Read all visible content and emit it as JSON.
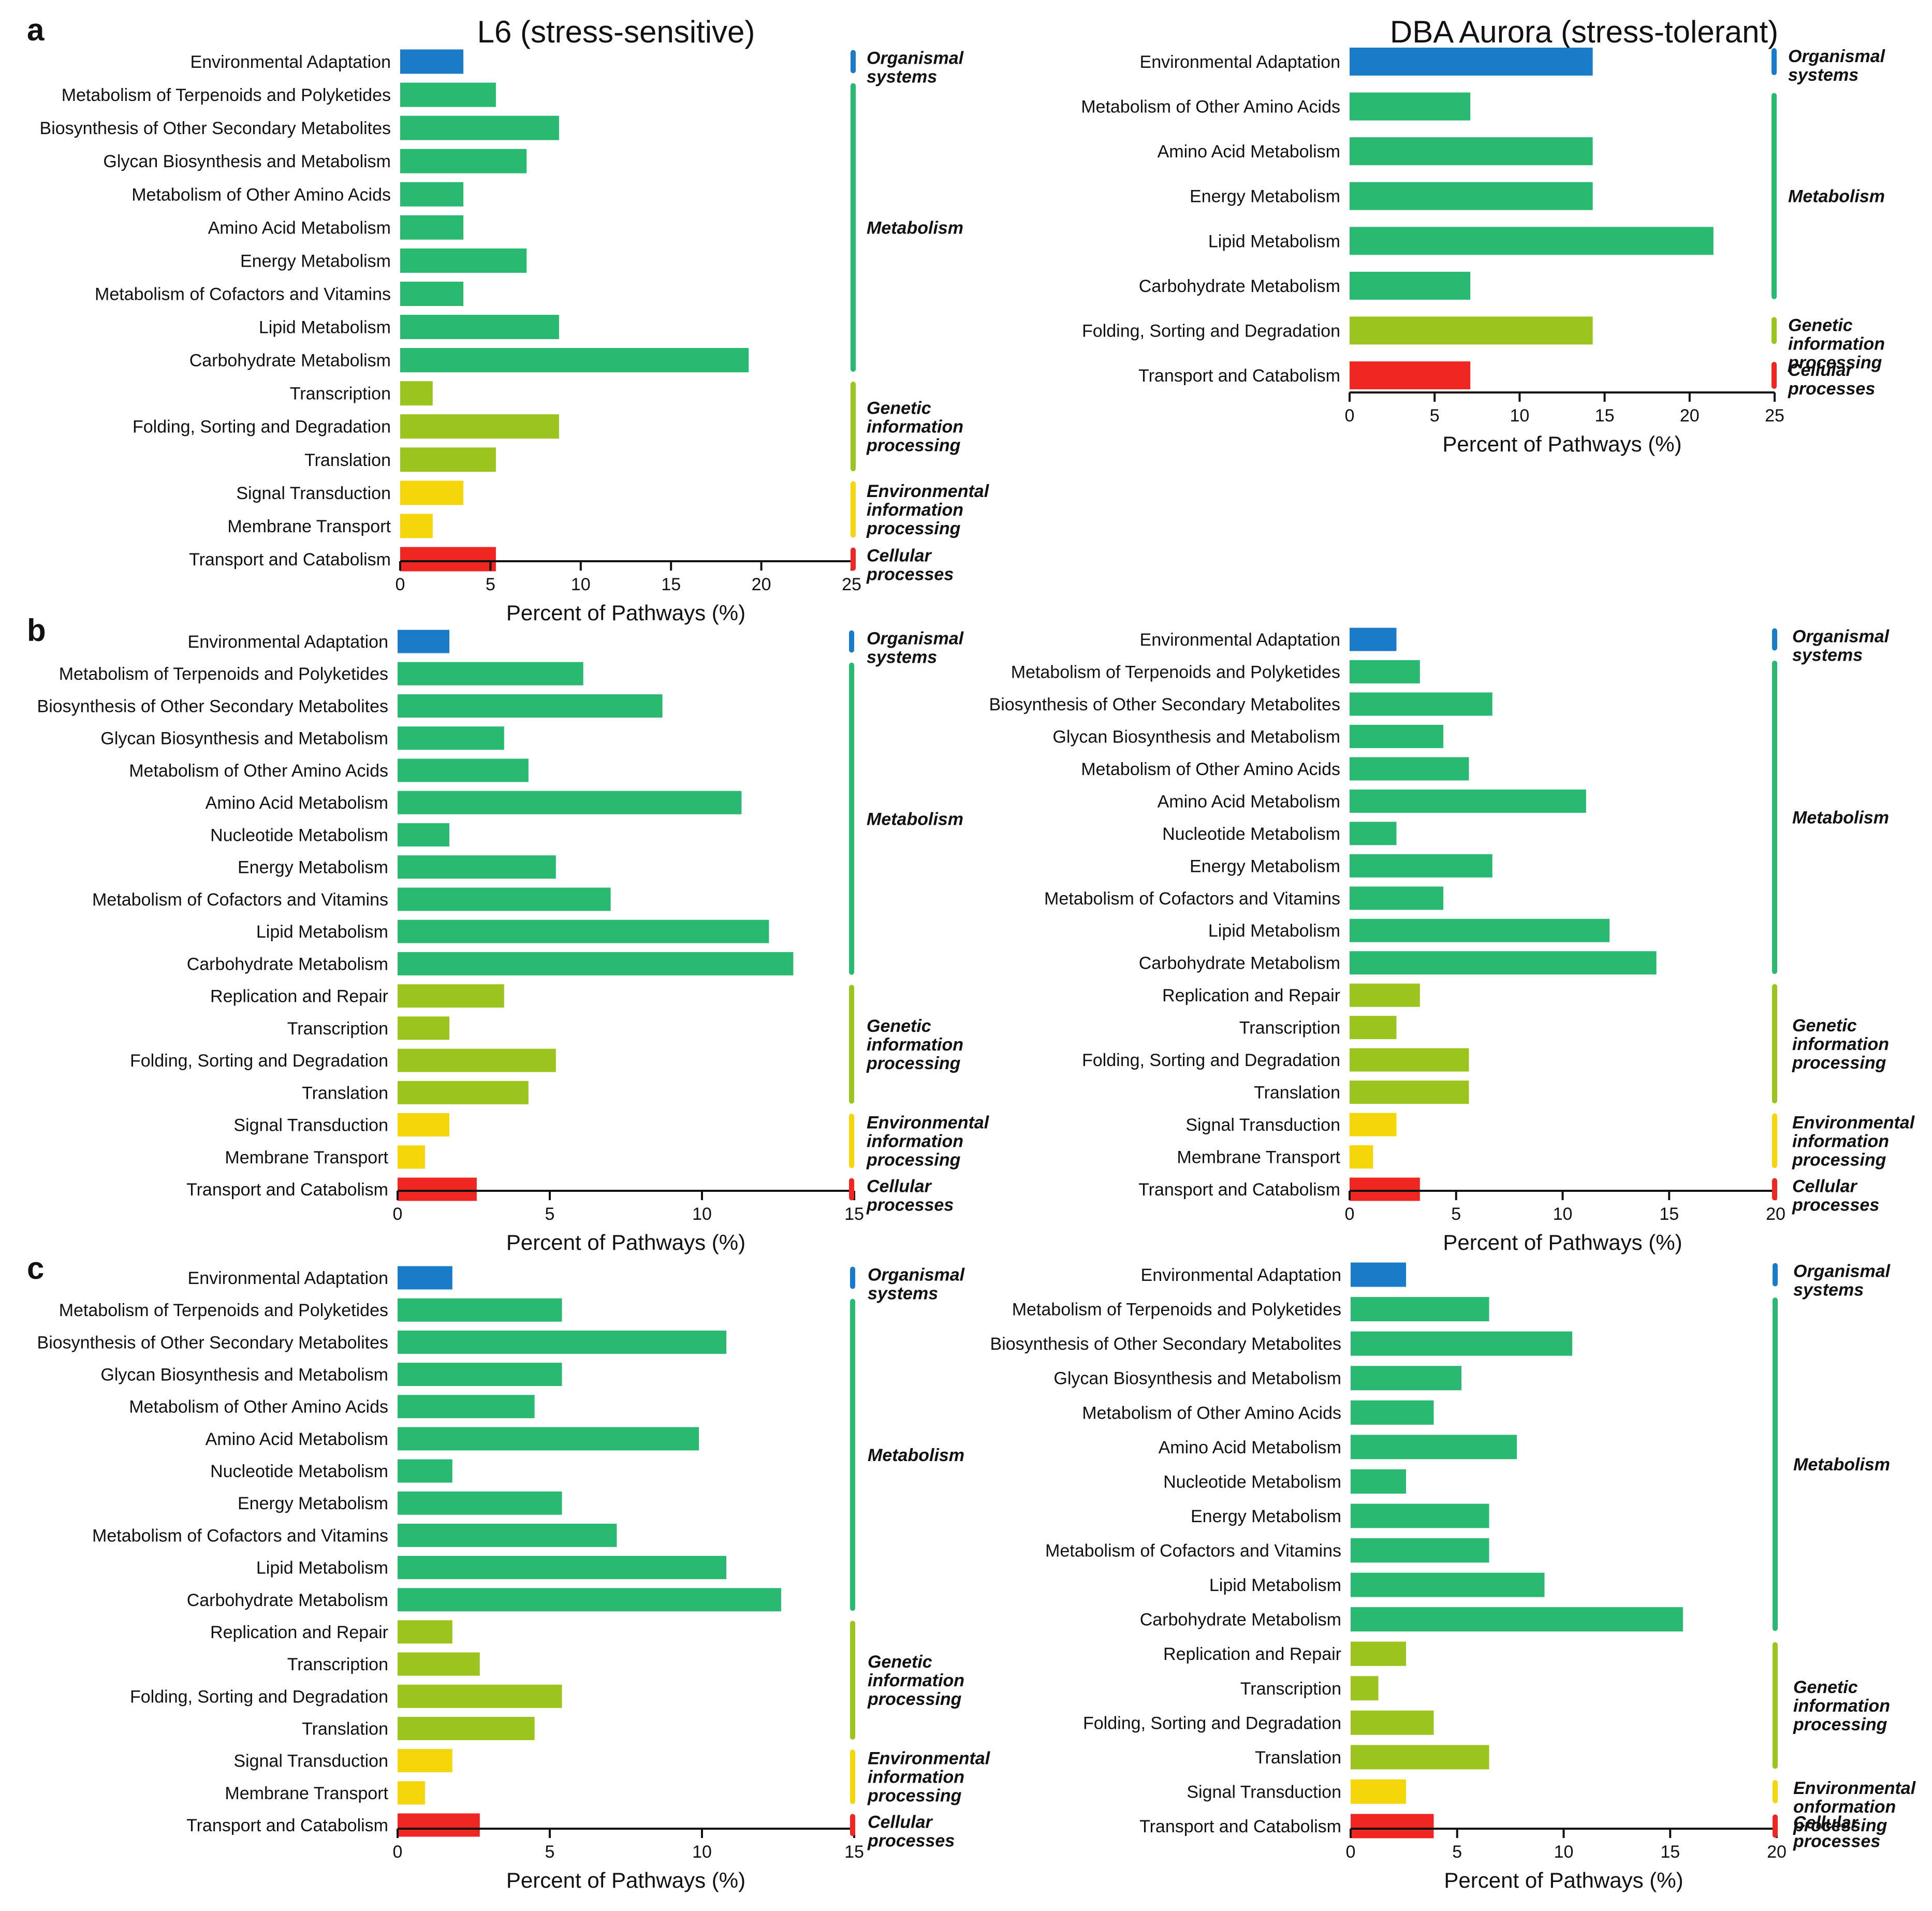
{
  "colors": {
    "Organismal systems": "#1a7bc9",
    "Metabolism": "#2ab970",
    "Genetic information processing": "#9bc41e",
    "Environmental information processing": "#f5d60a",
    "Cellular processes": "#ef2622",
    "axis": "#111111"
  },
  "chart_data": [
    {
      "type": "bar",
      "orientation": "horizontal",
      "panel": "a",
      "title": "L6 (stress-sensitive)",
      "xlabel": "Percent of Pathways (%)",
      "xlim": [
        0,
        25
      ],
      "xticks": [
        "0",
        "5",
        "10",
        "15",
        "20",
        "25"
      ],
      "categories": [
        "Environmental Adaptation",
        "Metabolism of Terpenoids and Polyketides",
        "Biosynthesis of Other Secondary Metabolites",
        "Glycan Biosynthesis and Metabolism",
        "Metabolism of Other Amino Acids",
        "Amino Acid Metabolism",
        "Energy Metabolism",
        "Metabolism of Cofactors and Vitamins",
        "Lipid Metabolism",
        "Carbohydrate Metabolism",
        "Transcription",
        "Folding, Sorting and Degradation",
        "Translation",
        "Signal Transduction",
        "Membrane Transport",
        "Transport and Catabolism"
      ],
      "values": [
        3.5,
        5.3,
        8.8,
        7.0,
        3.5,
        3.5,
        7.0,
        3.5,
        8.8,
        19.3,
        1.8,
        8.8,
        5.3,
        3.5,
        1.8,
        5.3
      ],
      "groups": [
        {
          "name": "Organismal systems",
          "lines": [
            "Organismal",
            "systems"
          ],
          "count": 1
        },
        {
          "name": "Metabolism",
          "lines": [
            "Metabolism"
          ],
          "count": 9
        },
        {
          "name": "Genetic information processing",
          "lines": [
            "Genetic",
            "information",
            "processing"
          ],
          "count": 3
        },
        {
          "name": "Environmental information processing",
          "lines": [
            "Environmental",
            "information",
            "processing"
          ],
          "count": 2
        },
        {
          "name": "Cellular processes",
          "lines": [
            "Cellular",
            "processes"
          ],
          "count": 1
        }
      ]
    },
    {
      "type": "bar",
      "orientation": "horizontal",
      "panel": "",
      "title": "DBA Aurora (stress-tolerant)",
      "xlabel": "Percent of Pathways (%)",
      "xlim": [
        0,
        25
      ],
      "xticks": [
        "0",
        "5",
        "10",
        "15",
        "20",
        "25"
      ],
      "categories": [
        "Environmental Adaptation",
        "Metabolism of Other Amino Acids",
        "Amino Acid Metabolism",
        "Energy Metabolism",
        "Lipid Metabolism",
        "Carbohydrate Metabolism",
        "Folding, Sorting and Degradation",
        "Transport and Catabolism"
      ],
      "values": [
        14.3,
        7.1,
        14.3,
        14.3,
        21.4,
        7.1,
        14.3,
        7.1
      ],
      "groups": [
        {
          "name": "Organismal systems",
          "lines": [
            "Organismal",
            "systems"
          ],
          "count": 1
        },
        {
          "name": "Metabolism",
          "lines": [
            "Metabolism"
          ],
          "count": 5
        },
        {
          "name": "Genetic information processing",
          "lines": [
            "Genetic",
            "information",
            "processing"
          ],
          "count": 1
        },
        {
          "name": "Cellular processes",
          "lines": [
            "Cellular",
            "processes"
          ],
          "count": 1
        }
      ]
    },
    {
      "type": "bar",
      "orientation": "horizontal",
      "panel": "b",
      "title": "",
      "xlabel": "Percent of Pathways (%)",
      "xlim": [
        0,
        15
      ],
      "xticks": [
        "0",
        "5",
        "10",
        "15"
      ],
      "categories": [
        "Environmental Adaptation",
        "Metabolism of Terpenoids and Polyketides",
        "Biosynthesis of Other Secondary Metabolites",
        "Glycan Biosynthesis and Metabolism",
        "Metabolism of Other Amino Acids",
        "Amino Acid Metabolism",
        "Nucleotide Metabolism",
        "Energy Metabolism",
        "Metabolism of Cofactors and Vitamins",
        "Lipid Metabolism",
        "Carbohydrate Metabolism",
        "Replication and Repair",
        "Transcription",
        "Folding, Sorting and Degradation",
        "Translation",
        "Signal Transduction",
        "Membrane Transport",
        "Transport and Catabolism"
      ],
      "values": [
        1.7,
        6.1,
        8.7,
        3.5,
        4.3,
        11.3,
        1.7,
        5.2,
        7.0,
        12.2,
        13.0,
        3.5,
        1.7,
        5.2,
        4.3,
        1.7,
        0.9,
        2.6
      ],
      "groups": [
        {
          "name": "Organismal systems",
          "lines": [
            "Organismal",
            "systems"
          ],
          "count": 1
        },
        {
          "name": "Metabolism",
          "lines": [
            "Metabolism"
          ],
          "count": 10
        },
        {
          "name": "Genetic information processing",
          "lines": [
            "Genetic",
            "information",
            "processing"
          ],
          "count": 4
        },
        {
          "name": "Environmental information processing",
          "lines": [
            "Environmental",
            "information",
            "processing"
          ],
          "count": 2
        },
        {
          "name": "Cellular processes",
          "lines": [
            "Cellular",
            "processes"
          ],
          "count": 1
        }
      ]
    },
    {
      "type": "bar",
      "orientation": "horizontal",
      "panel": "",
      "title": "",
      "xlabel": "Percent of Pathways (%)",
      "xlim": [
        0,
        20
      ],
      "xticks": [
        "0",
        "5",
        "10",
        "15",
        "20"
      ],
      "categories": [
        "Environmental Adaptation",
        "Metabolism of Terpenoids and Polyketides",
        "Biosynthesis of Other Secondary Metabolites",
        "Glycan Biosynthesis and Metabolism",
        "Metabolism of Other Amino Acids",
        "Amino Acid Metabolism",
        "Nucleotide Metabolism",
        "Energy Metabolism",
        "Metabolism of Cofactors and Vitamins",
        "Lipid Metabolism",
        "Carbohydrate Metabolism",
        "Replication and Repair",
        "Transcription",
        "Folding, Sorting and Degradation",
        "Translation",
        "Signal Transduction",
        "Membrane Transport",
        "Transport and Catabolism"
      ],
      "values": [
        2.2,
        3.3,
        6.7,
        4.4,
        5.6,
        11.1,
        2.2,
        6.7,
        4.4,
        12.2,
        14.4,
        3.3,
        2.2,
        5.6,
        5.6,
        2.2,
        1.1,
        3.3
      ],
      "groups": [
        {
          "name": "Organismal systems",
          "lines": [
            "Organismal",
            "systems"
          ],
          "count": 1
        },
        {
          "name": "Metabolism",
          "lines": [
            "Metabolism"
          ],
          "count": 10
        },
        {
          "name": "Genetic information processing",
          "lines": [
            "Genetic",
            "information",
            "processing"
          ],
          "count": 4
        },
        {
          "name": "Environmental information processing",
          "lines": [
            "Environmental",
            "information",
            "processing"
          ],
          "count": 2
        },
        {
          "name": "Cellular processes",
          "lines": [
            "Cellular",
            "processes"
          ],
          "count": 1
        }
      ]
    },
    {
      "type": "bar",
      "orientation": "horizontal",
      "panel": "c",
      "title": "",
      "xlabel": "Percent of Pathways (%)",
      "xlim": [
        0,
        15
      ],
      "xticks": [
        "0",
        "5",
        "10",
        "15"
      ],
      "categories": [
        "Environmental Adaptation",
        "Metabolism of Terpenoids and Polyketides",
        "Biosynthesis of Other Secondary Metabolites",
        "Glycan Biosynthesis and Metabolism",
        "Metabolism of Other Amino Acids",
        "Amino Acid Metabolism",
        "Nucleotide Metabolism",
        "Energy Metabolism",
        "Metabolism of Cofactors and Vitamins",
        "Lipid Metabolism",
        "Carbohydrate Metabolism",
        "Replication and Repair",
        "Transcription",
        "Folding, Sorting and Degradation",
        "Translation",
        "Signal Transduction",
        "Membrane Transport",
        "Transport and Catabolism"
      ],
      "values": [
        1.8,
        5.4,
        10.8,
        5.4,
        4.5,
        9.9,
        1.8,
        5.4,
        7.2,
        10.8,
        12.6,
        1.8,
        2.7,
        5.4,
        4.5,
        1.8,
        0.9,
        2.7
      ],
      "groups": [
        {
          "name": "Organismal systems",
          "lines": [
            "Organismal",
            "systems"
          ],
          "count": 1
        },
        {
          "name": "Metabolism",
          "lines": [
            "Metabolism"
          ],
          "count": 10
        },
        {
          "name": "Genetic information processing",
          "lines": [
            "Genetic",
            "information",
            "processing"
          ],
          "count": 4
        },
        {
          "name": "Environmental information processing",
          "lines": [
            "Environmental",
            "information",
            "processing"
          ],
          "count": 2
        },
        {
          "name": "Cellular processes",
          "lines": [
            "Cellular",
            "processes"
          ],
          "count": 1
        }
      ]
    },
    {
      "type": "bar",
      "orientation": "horizontal",
      "panel": "",
      "title": "",
      "xlabel": "Percent of Pathways (%)",
      "xlim": [
        0,
        20
      ],
      "xticks": [
        "0",
        "5",
        "10",
        "15",
        "20"
      ],
      "categories": [
        "Environmental Adaptation",
        "Metabolism of Terpenoids and Polyketides",
        "Biosynthesis of Other Secondary Metabolites",
        "Glycan Biosynthesis and Metabolism",
        "Metabolism of Other Amino Acids",
        "Amino Acid Metabolism",
        "Nucleotide Metabolism",
        "Energy Metabolism",
        "Metabolism of Cofactors and Vitamins",
        "Lipid Metabolism",
        "Carbohydrate Metabolism",
        "Replication and Repair",
        "Transcription",
        "Folding, Sorting and Degradation",
        "Translation",
        "Signal Transduction",
        "Transport and Catabolism"
      ],
      "values": [
        2.6,
        6.5,
        10.4,
        5.2,
        3.9,
        7.8,
        2.6,
        6.5,
        6.5,
        9.1,
        15.6,
        2.6,
        1.3,
        3.9,
        6.5,
        2.6,
        3.9
      ],
      "groups": [
        {
          "name": "Organismal systems",
          "lines": [
            "Organismal",
            "systems"
          ],
          "count": 1
        },
        {
          "name": "Metabolism",
          "lines": [
            "Metabolism"
          ],
          "count": 10
        },
        {
          "name": "Genetic information processing",
          "lines": [
            "Genetic",
            "information",
            "processing"
          ],
          "count": 4
        },
        {
          "name": "Environmental information processing",
          "lines": [
            "Environmental",
            "onformation",
            "processing"
          ],
          "count": 1
        },
        {
          "name": "Cellular processes",
          "lines": [
            "Cellular",
            "processes"
          ],
          "count": 1
        }
      ]
    }
  ]
}
